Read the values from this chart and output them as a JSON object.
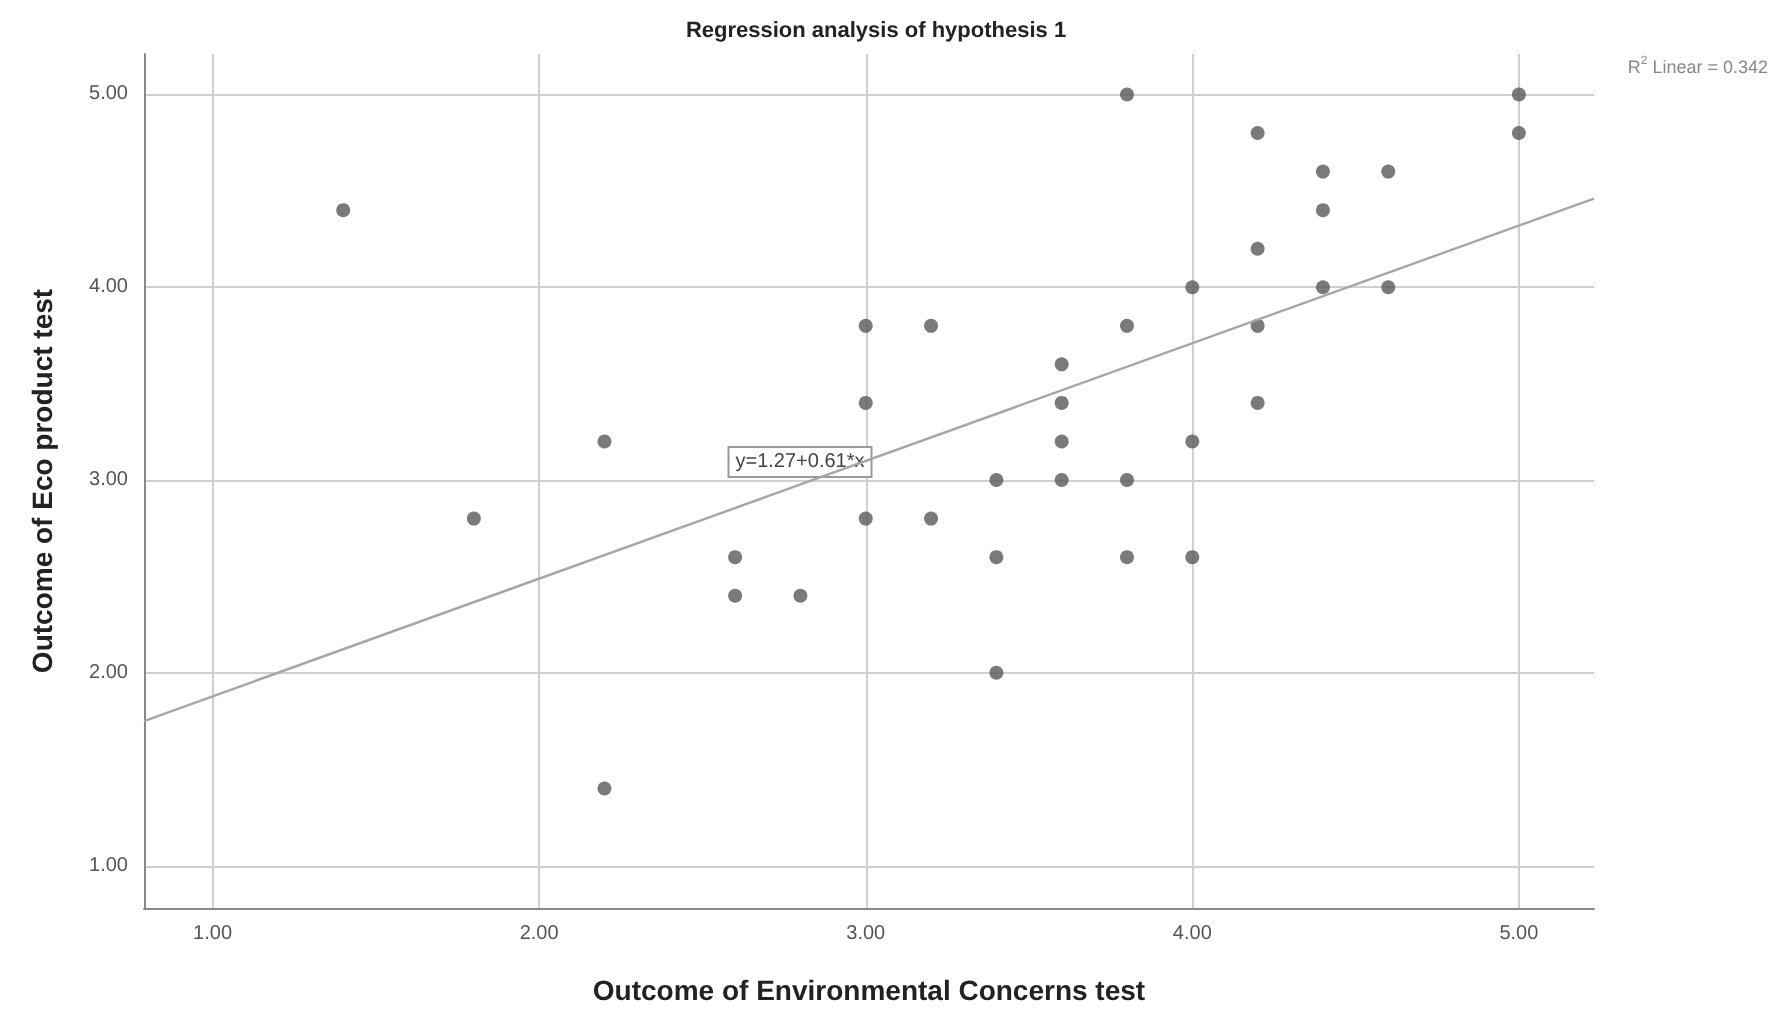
{
  "chart_data": {
    "type": "scatter",
    "title": "Regression analysis of hypothesis 1",
    "xlabel": "Outcome of Environmental Concerns test",
    "ylabel": "Outcome of Eco product test",
    "xlim": [
      0.79,
      5.23
    ],
    "ylim": [
      0.78,
      5.21
    ],
    "xticks": [
      {
        "value": 1,
        "label": "1.00"
      },
      {
        "value": 2,
        "label": "2.00"
      },
      {
        "value": 3,
        "label": "3.00"
      },
      {
        "value": 4,
        "label": "4.00"
      },
      {
        "value": 5,
        "label": "5.00"
      }
    ],
    "yticks": [
      {
        "value": 1,
        "label": "1.00"
      },
      {
        "value": 2,
        "label": "2.00"
      },
      {
        "value": 3,
        "label": "3.00"
      },
      {
        "value": 4,
        "label": "4.00"
      },
      {
        "value": 5,
        "label": "5.00"
      }
    ],
    "grid": true,
    "series": [
      {
        "color": "#595959",
        "marker": "circle",
        "x": [
          1.4,
          1.8,
          2.2,
          2.2,
          2.6,
          2.6,
          2.8,
          3.0,
          3.0,
          3.0,
          3.2,
          3.2,
          3.4,
          3.4,
          3.4,
          3.6,
          3.6,
          3.6,
          3.6,
          3.8,
          3.8,
          3.8,
          3.8,
          4.0,
          4.0,
          4.0,
          4.2,
          4.2,
          4.2,
          4.2,
          4.4,
          4.4,
          4.4,
          4.6,
          4.6,
          5.0,
          5.0
        ],
        "values": [
          4.4,
          2.8,
          3.2,
          1.4,
          2.6,
          2.4,
          2.4,
          3.8,
          3.4,
          2.8,
          3.8,
          2.8,
          3.0,
          2.6,
          2.0,
          3.6,
          3.4,
          3.2,
          3.0,
          5.0,
          3.8,
          3.0,
          2.6,
          4.0,
          3.2,
          2.6,
          4.8,
          4.2,
          3.8,
          3.4,
          4.6,
          4.4,
          4.0,
          4.6,
          4.0,
          5.0,
          4.8
        ]
      },
      {
        "type": "line",
        "marker": "none",
        "color": "#a6a6a6",
        "x": [
          0.79,
          5.23
        ],
        "values": [
          1.75,
          4.46
        ]
      }
    ],
    "annotations": [
      "y=1.27+0.61*x",
      "R$^{2}$ Linear = 0.342"
    ]
  }
}
